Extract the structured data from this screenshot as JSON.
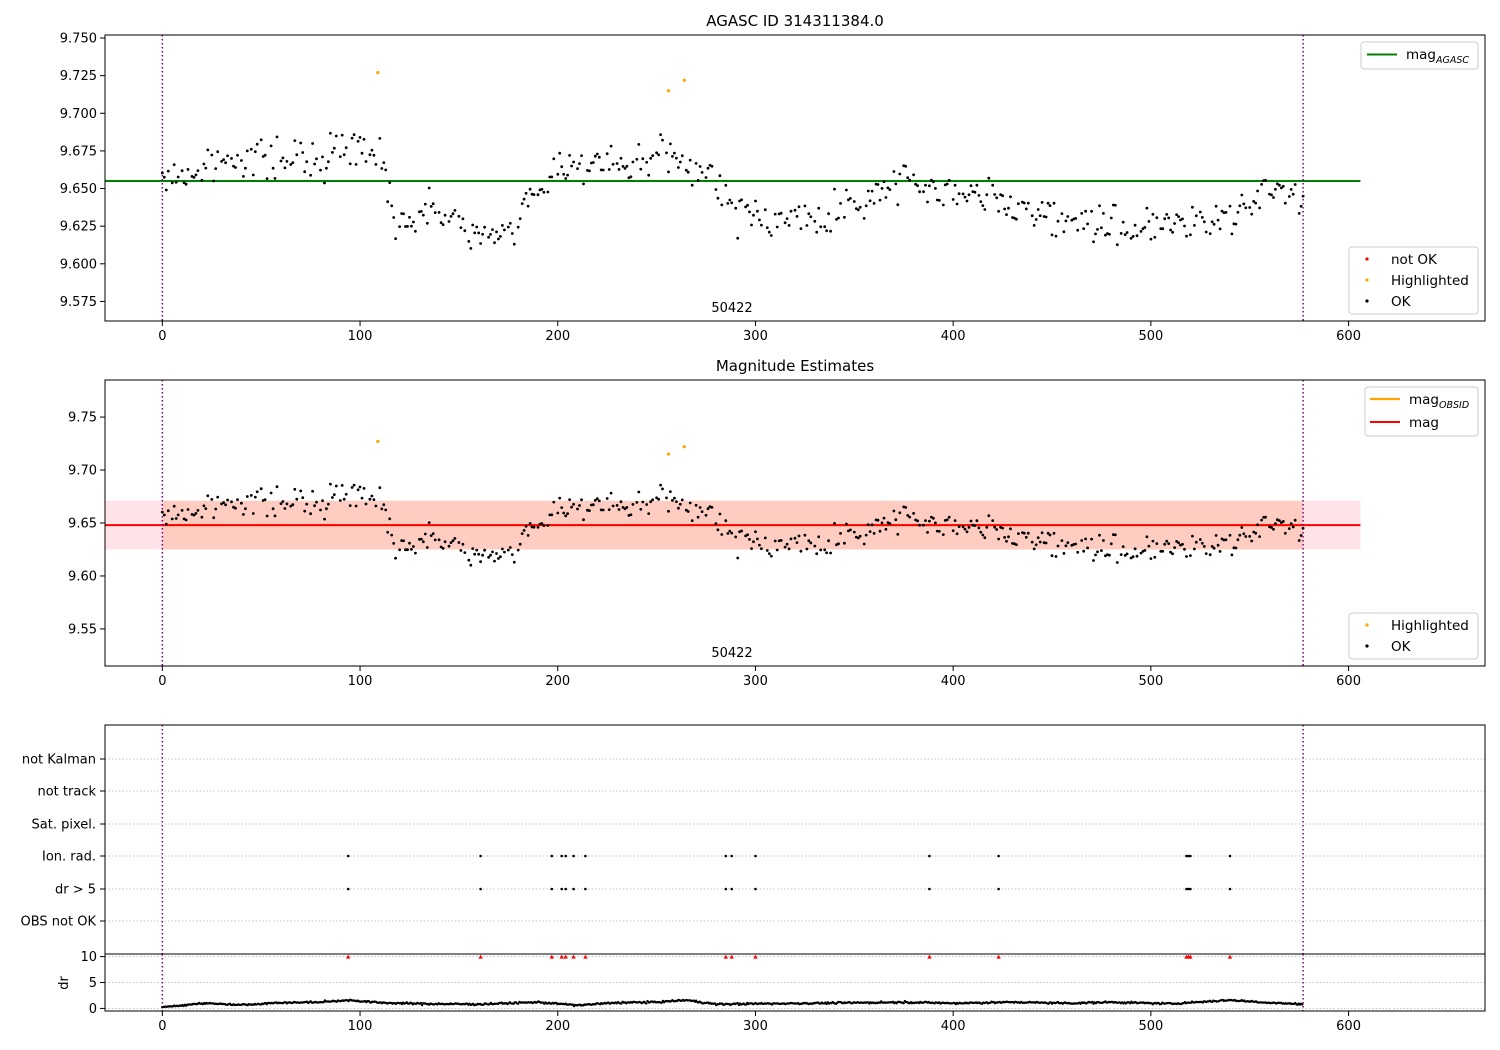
{
  "colors": {
    "ok": "#000000",
    "highlighted": "#ffa500",
    "not_ok": "#ff0000",
    "agasc_line": "#008000",
    "obsid_line": "#ffa500",
    "mag_line": "#ff0000",
    "band_outer": "#ffc0cb",
    "band_inner": "#ffa07a",
    "vline": "#800080",
    "grid": "#b0b0b0"
  },
  "chart_data": [
    {
      "type": "scatter",
      "title": "AGASC ID 314311384.0",
      "annotation": "50422",
      "xlim": [
        -29,
        669
      ],
      "ylim": [
        9.562,
        9.752
      ],
      "xticks": [
        0,
        100,
        200,
        300,
        400,
        500,
        600
      ],
      "yticks": [
        9.575,
        9.6,
        9.625,
        9.65,
        9.675,
        9.7,
        9.725,
        9.75
      ],
      "ytick_labels": [
        "9.575",
        "9.600",
        "9.625",
        "9.650",
        "9.675",
        "9.700",
        "9.725",
        "9.750"
      ],
      "vlines": [
        0,
        577
      ],
      "hline": {
        "name": "mag",
        "sub": "AGASC",
        "y": 9.655,
        "x": [
          -29,
          606
        ]
      },
      "legend_lines": [
        {
          "name": "mag",
          "sub": "AGASC",
          "color": "#008000"
        }
      ],
      "legend_points": [
        {
          "name": "not OK",
          "color": "#ff0000"
        },
        {
          "name": "Highlighted",
          "color": "#ffa500"
        },
        {
          "name": "OK",
          "color": "#000000"
        }
      ],
      "highlighted": [
        [
          109,
          9.727
        ],
        [
          256,
          9.715
        ],
        [
          264,
          9.722
        ]
      ],
      "trend": [
        [
          0,
          9.655
        ],
        [
          20,
          9.662
        ],
        [
          40,
          9.672
        ],
        [
          60,
          9.668
        ],
        [
          80,
          9.67
        ],
        [
          95,
          9.68
        ],
        [
          110,
          9.675
        ],
        [
          118,
          9.63
        ],
        [
          140,
          9.635
        ],
        [
          165,
          9.615
        ],
        [
          180,
          9.63
        ],
        [
          200,
          9.665
        ],
        [
          215,
          9.668
        ],
        [
          235,
          9.663
        ],
        [
          255,
          9.672
        ],
        [
          275,
          9.66
        ],
        [
          290,
          9.635
        ],
        [
          310,
          9.63
        ],
        [
          330,
          9.628
        ],
        [
          355,
          9.64
        ],
        [
          375,
          9.66
        ],
        [
          390,
          9.65
        ],
        [
          410,
          9.645
        ],
        [
          430,
          9.64
        ],
        [
          460,
          9.628
        ],
        [
          480,
          9.625
        ],
        [
          510,
          9.625
        ],
        [
          530,
          9.63
        ],
        [
          550,
          9.64
        ],
        [
          565,
          9.65
        ],
        [
          577,
          9.645
        ]
      ]
    },
    {
      "type": "scatter",
      "title": "Magnitude Estimates",
      "annotation": "50422",
      "xlim": [
        -29,
        669
      ],
      "ylim": [
        9.515,
        9.785
      ],
      "xticks": [
        0,
        100,
        200,
        300,
        400,
        500,
        600
      ],
      "yticks": [
        9.55,
        9.6,
        9.65,
        9.7,
        9.75
      ],
      "ytick_labels": [
        "9.55",
        "9.60",
        "9.65",
        "9.70",
        "9.75"
      ],
      "vlines": [
        0,
        577
      ],
      "mag_line": {
        "y": 9.648,
        "x": [
          -29,
          606
        ]
      },
      "band_outer": [
        9.625,
        9.671
      ],
      "band_inner": [
        9.625,
        9.671
      ],
      "band_inner_x": [
        0,
        577
      ],
      "legend_lines": [
        {
          "name": "mag",
          "sub": "OBSID",
          "color": "#ffa500"
        },
        {
          "name": "mag",
          "sub": "",
          "color": "#ff0000"
        }
      ],
      "legend_points": [
        {
          "name": "Highlighted",
          "color": "#ffa500"
        },
        {
          "name": "OK",
          "color": "#000000"
        }
      ]
    },
    {
      "type": "scatter",
      "title": "",
      "xlim": [
        -29,
        669
      ],
      "xticks": [
        0,
        100,
        200,
        300,
        400,
        500,
        600
      ],
      "vlines": [
        0,
        577
      ],
      "flag_labels": [
        "not Kalman",
        "not track",
        "Sat. pixel.",
        "Ion. rad.",
        "dr > 5",
        "OBS not OK"
      ],
      "flag_events": [
        94,
        161,
        197,
        202,
        204,
        208,
        214,
        285,
        288,
        300,
        388,
        423,
        518,
        519,
        520,
        540
      ],
      "flagged_rows": [
        "Ion. rad.",
        "dr > 5"
      ],
      "dr": {
        "ylabel": "dr",
        "ylim": [
          -0.5,
          10.5
        ],
        "yticks": [
          0,
          5,
          10
        ],
        "ytick_labels": [
          "0",
          "5",
          "10"
        ],
        "clip_markers_y": 10,
        "curve": [
          [
            0,
            0.2
          ],
          [
            20,
            1.0
          ],
          [
            40,
            0.7
          ],
          [
            60,
            1.1
          ],
          [
            80,
            1.2
          ],
          [
            94,
            1.6
          ],
          [
            110,
            1.1
          ],
          [
            130,
            0.9
          ],
          [
            160,
            0.8
          ],
          [
            190,
            1.2
          ],
          [
            210,
            0.6
          ],
          [
            230,
            1.1
          ],
          [
            250,
            1.2
          ],
          [
            265,
            1.6
          ],
          [
            280,
            0.8
          ],
          [
            300,
            0.9
          ],
          [
            330,
            1.0
          ],
          [
            355,
            1.1
          ],
          [
            375,
            1.2
          ],
          [
            400,
            1.0
          ],
          [
            430,
            1.2
          ],
          [
            460,
            1.0
          ],
          [
            480,
            1.2
          ],
          [
            510,
            0.9
          ],
          [
            540,
            1.6
          ],
          [
            560,
            1.1
          ],
          [
            577,
            0.8
          ]
        ]
      }
    }
  ]
}
